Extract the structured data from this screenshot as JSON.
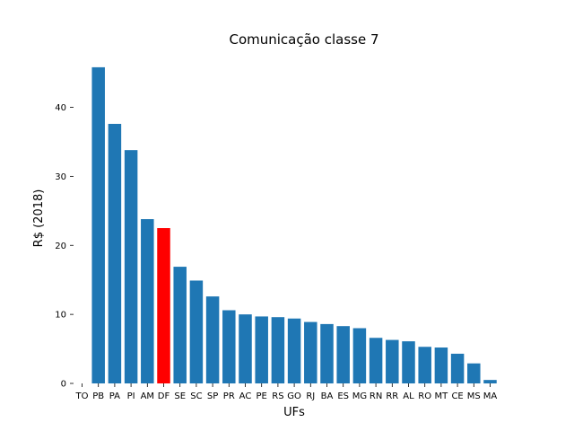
{
  "chart_data": {
    "type": "bar",
    "title": "Comunicação classe 7",
    "xlabel": "UFs",
    "ylabel": "R$ (2018)",
    "ylim": [
      0,
      47
    ],
    "yticks": [
      0,
      10,
      20,
      30,
      40
    ],
    "grid": false,
    "categories": [
      "TO",
      "PB",
      "PA",
      "PI",
      "AM",
      "DF",
      "SE",
      "SC",
      "SP",
      "PR",
      "AC",
      "PE",
      "RS",
      "GO",
      "RJ",
      "BA",
      "ES",
      "MG",
      "RN",
      "RR",
      "AL",
      "RO",
      "MT",
      "CE",
      "MS",
      "MA"
    ],
    "values": [
      0,
      45.8,
      37.6,
      33.8,
      23.8,
      22.5,
      16.9,
      14.9,
      12.6,
      10.6,
      10.0,
      9.7,
      9.6,
      9.4,
      8.9,
      8.6,
      8.3,
      8.0,
      6.6,
      6.3,
      6.1,
      5.3,
      5.2,
      4.3,
      2.9,
      0.5
    ],
    "colors": {
      "default": "#1f77b4",
      "highlight": "#ff0000"
    },
    "highlight_category": "DF"
  }
}
